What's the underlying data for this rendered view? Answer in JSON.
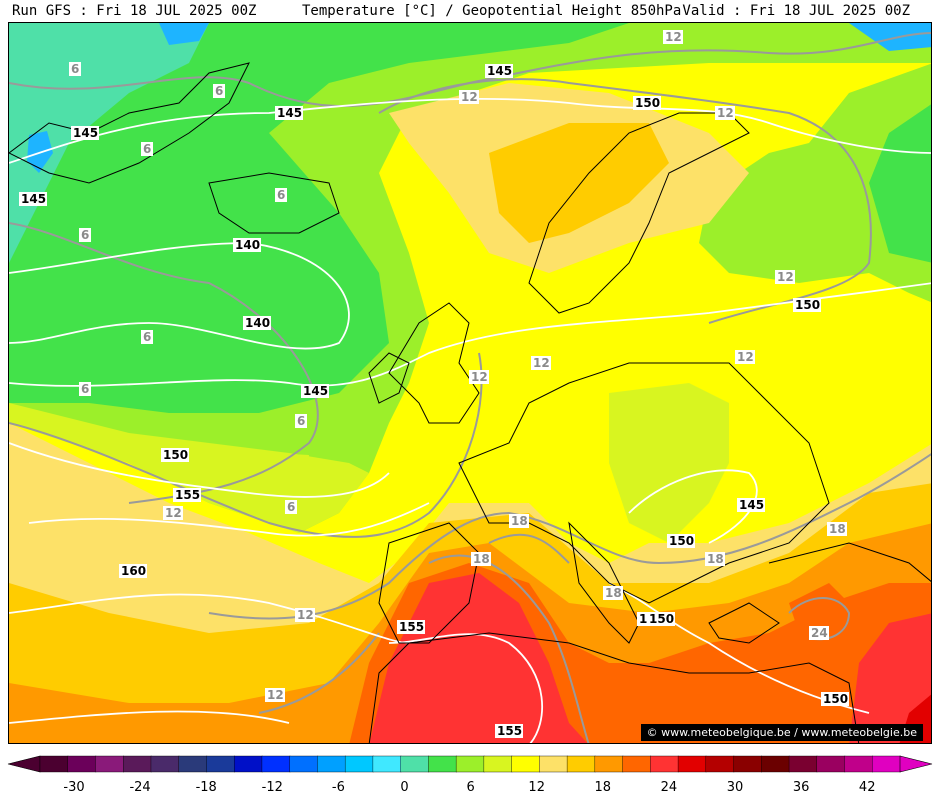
{
  "header": {
    "run": "Run GFS : Fri 18 JUL 2025 00Z",
    "title": "Temperature [°C] / Geopotential Height 850hPa",
    "valid": "Valid : Fri 18 JUL 2025 00Z"
  },
  "credit": "© www.meteobelgique.be / www.meteobelgie.be",
  "palette": {
    "land_line": "#000000",
    "isotherm": "#9a9a9a",
    "isohypse": "#ffffff",
    "fill_0": "#4fe0a8",
    "fill_3": "#43e24a",
    "fill_6": "#9cef2a",
    "fill_9": "#d8f520",
    "fill_12": "#ffff00",
    "fill_15": "#fde168",
    "fill_18": "#ffcc00",
    "fill_21": "#ff9900",
    "fill_24": "#ff6600",
    "fill_27": "#ff3333",
    "fill_30": "#e20000",
    "fill_cold": "#1eb4ff"
  },
  "legend": {
    "ticks": [
      "-30",
      "-24",
      "-18",
      "-12",
      "-6",
      "0",
      "6",
      "12",
      "18",
      "24",
      "30",
      "36",
      "42"
    ],
    "colors": [
      "#4b0030",
      "#6b005a",
      "#8a1a7a",
      "#5a1a5a",
      "#4a2a6a",
      "#2a3a7a",
      "#1a3a9a",
      "#0010c8",
      "#0030ff",
      "#0070ff",
      "#00a0ff",
      "#00c8ff",
      "#40e8ff",
      "#4fe0a8",
      "#43e24a",
      "#9cef2a",
      "#d8f520",
      "#ffff00",
      "#fde168",
      "#ffcc00",
      "#ff9900",
      "#ff6600",
      "#ff3333",
      "#e20000",
      "#b40000",
      "#8a0000",
      "#6b0000",
      "#7a0030",
      "#9a0060",
      "#c0008a",
      "#e000c0"
    ]
  },
  "isotherm_labels": [
    "6",
    "6",
    "6",
    "6",
    "6",
    "6",
    "6",
    "6",
    "6",
    "12",
    "12",
    "12",
    "12",
    "12",
    "12",
    "12",
    "12",
    "12",
    "12",
    "18",
    "18",
    "18",
    "18",
    "18",
    "24",
    "24"
  ],
  "height_labels": [
    "145",
    "145",
    "145",
    "145",
    "145",
    "150",
    "150",
    "140",
    "140",
    "150",
    "155",
    "160",
    "150",
    "150",
    "145",
    "150",
    "155",
    "155",
    "150"
  ]
}
